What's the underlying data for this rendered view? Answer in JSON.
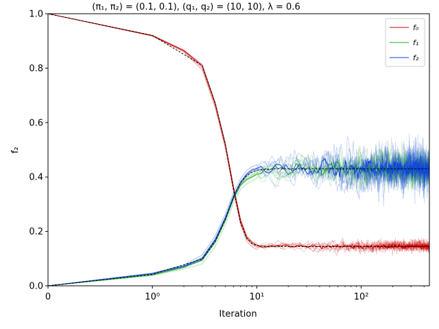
{
  "chart_data": {
    "type": "line",
    "title": "(π₁, π₂) = (0.1, 0.1), (q₁, q₂) = (10, 10), λ = 0.6",
    "xlabel": "Iteration",
    "ylabel": "f₂",
    "x_scale": "symlog",
    "xlim": [
      0,
      450
    ],
    "ylim": [
      0,
      1.0
    ],
    "x_ticks": [
      {
        "value": 0,
        "label": "0"
      },
      {
        "value": 1,
        "label": "10⁰"
      },
      {
        "value": 10,
        "label": "10¹"
      },
      {
        "value": 100,
        "label": "10²"
      }
    ],
    "y_ticks": [
      "0.0",
      "0.2",
      "0.4",
      "0.6",
      "0.8",
      "1.0"
    ],
    "legend_position": "top-right",
    "colors": {
      "f0": "#cc0000",
      "f1": "#22aa22",
      "f2": "#1144dd",
      "mean": "#000000"
    },
    "x": [
      0,
      1,
      3,
      4,
      5,
      6,
      7,
      8,
      9,
      10,
      12,
      15,
      20,
      30,
      50,
      100,
      200,
      450
    ],
    "series": [
      {
        "name": "f₀",
        "key": "f0",
        "values": [
          1.0,
          0.92,
          0.81,
          0.67,
          0.52,
          0.36,
          0.24,
          0.18,
          0.16,
          0.15,
          0.145,
          0.145,
          0.145,
          0.145,
          0.145,
          0.145,
          0.145,
          0.145
        ]
      },
      {
        "name": "f₁",
        "key": "f1",
        "values": [
          0.0,
          0.04,
          0.095,
          0.16,
          0.24,
          0.32,
          0.37,
          0.39,
          0.4,
          0.41,
          0.425,
          0.43,
          0.43,
          0.43,
          0.43,
          0.43,
          0.43,
          0.43
        ]
      },
      {
        "name": "f₂",
        "key": "f2",
        "values": [
          0.0,
          0.045,
          0.1,
          0.17,
          0.25,
          0.33,
          0.38,
          0.41,
          0.425,
          0.43,
          0.43,
          0.43,
          0.43,
          0.43,
          0.43,
          0.43,
          0.43,
          0.43
        ]
      }
    ],
    "mean_lines": [
      {
        "values": [
          1.0,
          0.92,
          0.81,
          0.67,
          0.52,
          0.35,
          0.23,
          0.175,
          0.155,
          0.148,
          0.145,
          0.145,
          0.145,
          0.145,
          0.145,
          0.145,
          0.145,
          0.145
        ]
      },
      {
        "values": [
          0.0,
          0.042,
          0.098,
          0.165,
          0.245,
          0.33,
          0.38,
          0.405,
          0.418,
          0.425,
          0.428,
          0.43,
          0.43,
          0.43,
          0.43,
          0.43,
          0.43,
          0.43
        ]
      },
      {
        "values": [
          0.0,
          0.0,
          0.0,
          0.0,
          0.0,
          0.0,
          0.0,
          0.0,
          0.0,
          0.0,
          0.0,
          0.0,
          0.0,
          0.0,
          0.0,
          0.0,
          0.0,
          0.0
        ]
      }
    ]
  }
}
